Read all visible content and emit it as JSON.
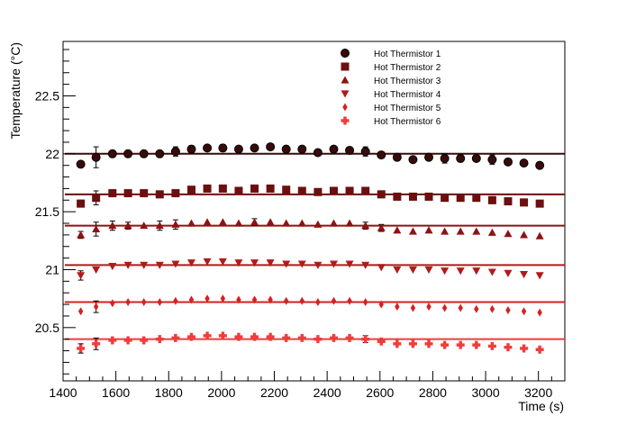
{
  "chart_data": {
    "type": "scatter",
    "title": "",
    "xlabel": "Time (s)",
    "ylabel": "Temperature (°C)",
    "xlim": [
      1400,
      3300
    ],
    "ylim": [
      20.04,
      22.97
    ],
    "x_ticks": [
      1400,
      1600,
      1800,
      2000,
      2200,
      2400,
      2600,
      2800,
      3000,
      3200
    ],
    "y_ticks": [
      20.5,
      21,
      21.5,
      22,
      22.5
    ],
    "legend_position": "top-right",
    "x": [
      1467,
      1525,
      1587,
      1646,
      1706,
      1766,
      1826,
      1886,
      1946,
      2005,
      2065,
      2125,
      2185,
      2245,
      2305,
      2365,
      2425,
      2485,
      2545,
      2605,
      2665,
      2725,
      2785,
      2845,
      2905,
      2965,
      3025,
      3085,
      3145,
      3205
    ],
    "series": [
      {
        "name": "Hot Thermistor 1",
        "marker": "circle",
        "color": "#3a0a0a",
        "reference": 22.0,
        "values": [
          21.91,
          21.97,
          22.0,
          22.0,
          22.0,
          22.0,
          22.02,
          22.04,
          22.05,
          22.05,
          22.04,
          22.05,
          22.06,
          22.04,
          22.04,
          22.01,
          22.04,
          22.03,
          22.02,
          21.99,
          21.97,
          21.95,
          21.97,
          21.96,
          21.96,
          21.96,
          21.95,
          21.93,
          21.92,
          21.9
        ],
        "errors": [
          0.02,
          0.09,
          0.02,
          0.01,
          0.02,
          0.01,
          0.04,
          0.03,
          0.02,
          0.03,
          0.01,
          0.02,
          0.01,
          0.02,
          0.01,
          0.02,
          0.01,
          0.01,
          0.04,
          0.02,
          0.01,
          0.02,
          0.01,
          0.04,
          0.03,
          0.02,
          0.04,
          0.01,
          0.01,
          0.01
        ]
      },
      {
        "name": "Hot Thermistor 2",
        "marker": "square",
        "color": "#6b0f0f",
        "reference": 21.65,
        "values": [
          21.57,
          21.62,
          21.66,
          21.66,
          21.66,
          21.65,
          21.66,
          21.69,
          21.7,
          21.7,
          21.68,
          21.7,
          21.7,
          21.69,
          21.68,
          21.67,
          21.68,
          21.68,
          21.68,
          21.65,
          21.63,
          21.63,
          21.63,
          21.62,
          21.62,
          21.62,
          21.6,
          21.59,
          21.58,
          21.57
        ],
        "errors": [
          0.03,
          0.06,
          0.02,
          0.01,
          0.01,
          0.01,
          0.02,
          0.01,
          0.01,
          0.02,
          0.01,
          0.01,
          0.01,
          0.01,
          0.01,
          0.01,
          0.01,
          0.01,
          0.03,
          0.01,
          0.01,
          0.01,
          0.01,
          0.02,
          0.01,
          0.01,
          0.03,
          0.01,
          0.01,
          0.01
        ]
      },
      {
        "name": "Hot Thermistor 3",
        "marker": "triangle-up",
        "color": "#8f1212",
        "reference": 21.38,
        "values": [
          21.3,
          21.35,
          21.38,
          21.38,
          21.38,
          21.38,
          21.39,
          21.4,
          21.41,
          21.41,
          21.4,
          21.41,
          21.41,
          21.4,
          21.4,
          21.39,
          21.4,
          21.4,
          21.38,
          21.36,
          21.34,
          21.33,
          21.34,
          21.33,
          21.33,
          21.33,
          21.32,
          21.31,
          21.3,
          21.29
        ],
        "errors": [
          0.03,
          0.06,
          0.04,
          0.03,
          0.02,
          0.04,
          0.04,
          0.01,
          0.01,
          0.01,
          0.01,
          0.03,
          0.02,
          0.02,
          0.01,
          0.01,
          0.01,
          0.01,
          0.03,
          0.03,
          0.01,
          0.01,
          0.01,
          0.01,
          0.01,
          0.01,
          0.01,
          0.01,
          0.01,
          0.01
        ]
      },
      {
        "name": "Hot Thermistor 4",
        "marker": "triangle-down",
        "color": "#b21a1a",
        "reference": 21.04,
        "values": [
          20.95,
          21.0,
          21.03,
          21.04,
          21.04,
          21.04,
          21.05,
          21.06,
          21.07,
          21.07,
          21.06,
          21.06,
          21.06,
          21.05,
          21.05,
          21.04,
          21.05,
          21.05,
          21.04,
          21.02,
          21.0,
          21.0,
          21.0,
          20.99,
          20.99,
          20.99,
          20.98,
          20.97,
          20.96,
          20.95
        ],
        "errors": [
          0.04,
          0.02,
          0.01,
          0.01,
          0.01,
          0.01,
          0.01,
          0.01,
          0.01,
          0.01,
          0.01,
          0.01,
          0.01,
          0.01,
          0.01,
          0.01,
          0.01,
          0.01,
          0.01,
          0.01,
          0.01,
          0.01,
          0.01,
          0.01,
          0.01,
          0.01,
          0.01,
          0.01,
          0.01,
          0.01
        ]
      },
      {
        "name": "Hot Thermistor 5",
        "marker": "diamond",
        "color": "#d42222",
        "reference": 20.72,
        "values": [
          20.64,
          20.68,
          20.71,
          20.72,
          20.72,
          20.72,
          20.73,
          20.74,
          20.75,
          20.75,
          20.74,
          20.74,
          20.74,
          20.73,
          20.73,
          20.72,
          20.73,
          20.73,
          20.72,
          20.7,
          20.68,
          20.67,
          20.68,
          20.67,
          20.67,
          20.66,
          20.66,
          20.65,
          20.64,
          20.63
        ],
        "errors": [
          0.01,
          0.05,
          0.01,
          0.01,
          0.01,
          0.01,
          0.01,
          0.01,
          0.01,
          0.01,
          0.01,
          0.01,
          0.01,
          0.01,
          0.01,
          0.01,
          0.01,
          0.01,
          0.01,
          0.01,
          0.01,
          0.01,
          0.01,
          0.01,
          0.01,
          0.01,
          0.01,
          0.01,
          0.01,
          0.01
        ]
      },
      {
        "name": "Hot Thermistor 6",
        "marker": "cross",
        "color": "#ef3c3c",
        "reference": 20.4,
        "values": [
          20.32,
          20.36,
          20.39,
          20.39,
          20.39,
          20.4,
          20.41,
          20.42,
          20.43,
          20.43,
          20.42,
          20.42,
          20.42,
          20.41,
          20.41,
          20.4,
          20.41,
          20.41,
          20.4,
          20.38,
          20.36,
          20.36,
          20.36,
          20.35,
          20.35,
          20.35,
          20.34,
          20.33,
          20.32,
          20.31
        ],
        "errors": [
          0.04,
          0.05,
          0.01,
          0.01,
          0.01,
          0.02,
          0.02,
          0.01,
          0.01,
          0.01,
          0.01,
          0.01,
          0.01,
          0.01,
          0.01,
          0.01,
          0.01,
          0.01,
          0.03,
          0.01,
          0.01,
          0.01,
          0.01,
          0.01,
          0.01,
          0.01,
          0.01,
          0.01,
          0.01,
          0.01
        ]
      }
    ]
  }
}
